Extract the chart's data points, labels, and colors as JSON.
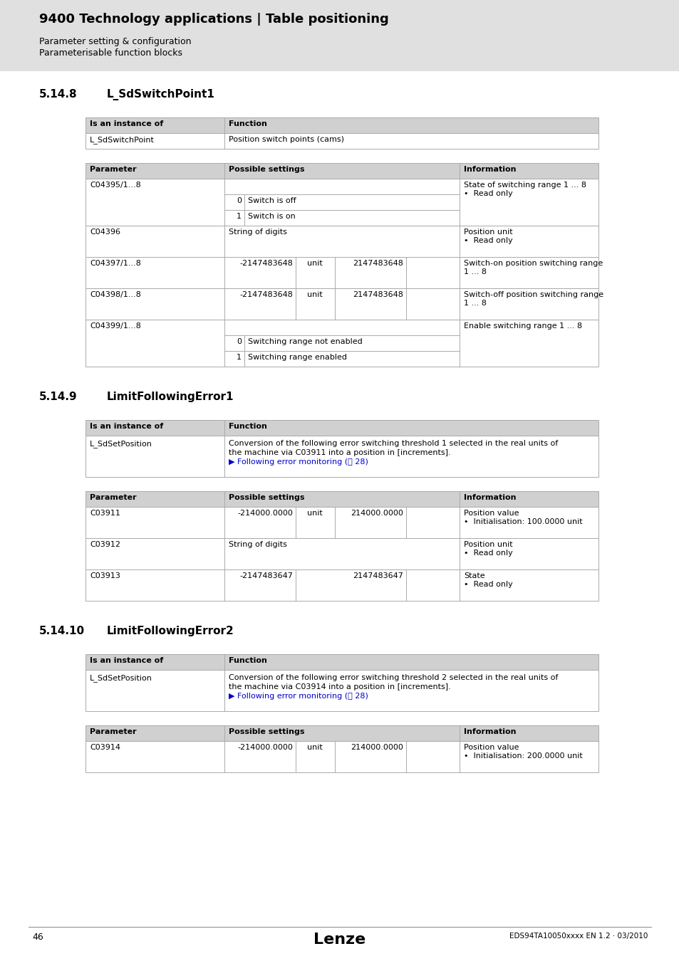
{
  "page_bg": "#ffffff",
  "header_bg": "#e0e0e0",
  "header_title": "9400 Technology applications | Table positioning",
  "header_sub1": "Parameter setting & configuration",
  "header_sub2": "Parameterisable function blocks",
  "section1_num": "5.14.8",
  "section1_name": "L_SdSwitchPoint1",
  "section2_num": "5.14.9",
  "section2_name": "LimitFollowingError1",
  "section3_num": "5.14.10",
  "section3_name": "LimitFollowingError2",
  "footer_page": "46",
  "footer_logo": "Lenze",
  "footer_doc": "EDS94TA10050xxxx EN 1.2 · 03/2010",
  "table_header_bg": "#d0d0d0",
  "table_row_bg": "#ffffff",
  "link_color": "#0000cc",
  "border_color": "#aaaaaa",
  "text_color": "#000000"
}
